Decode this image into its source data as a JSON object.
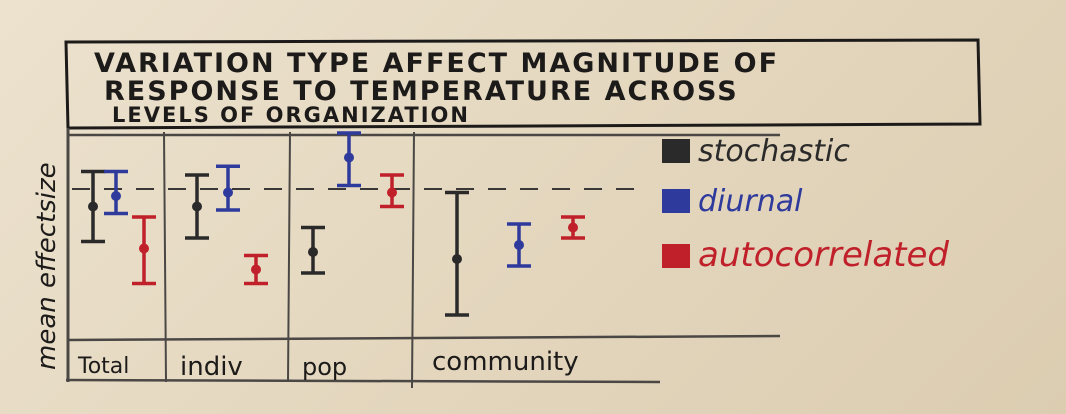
{
  "chart_data": {
    "type": "errorbar",
    "title_lines": [
      "VARIATION TYPE AFFECT MAGNITUDE OF",
      "RESPONSE TO TEMPERATURE ACROSS",
      "LEVELS OF ORGANIZATION"
    ],
    "ylabel": "mean effectsize",
    "categories": [
      "Total",
      "indiv",
      "pop",
      "community"
    ],
    "ylim": [
      0,
      100
    ],
    "reference_line": 72,
    "series": [
      {
        "name": "stochastic",
        "color": "#2b2a2a",
        "values": [
          {
            "mid": 62,
            "low": 42,
            "high": 82
          },
          {
            "mid": 62,
            "low": 44,
            "high": 80
          },
          {
            "mid": 36,
            "low": 24,
            "high": 50
          },
          {
            "mid": 32,
            "low": 0,
            "high": 70
          }
        ]
      },
      {
        "name": "diurnal",
        "color": "#2e3a9c",
        "values": [
          {
            "mid": 68,
            "low": 58,
            "high": 82
          },
          {
            "mid": 70,
            "low": 60,
            "high": 85
          },
          {
            "mid": 90,
            "low": 74,
            "high": 104
          },
          {
            "mid": 40,
            "low": 28,
            "high": 52
          }
        ]
      },
      {
        "name": "autocorrelated",
        "color": "#c0202a",
        "values": [
          {
            "mid": 38,
            "low": 18,
            "high": 56
          },
          {
            "mid": 26,
            "low": 18,
            "high": 34
          },
          {
            "mid": 70,
            "low": 62,
            "high": 80
          },
          {
            "mid": 50,
            "low": 44,
            "high": 56
          }
        ]
      }
    ],
    "legend_position": "right"
  }
}
